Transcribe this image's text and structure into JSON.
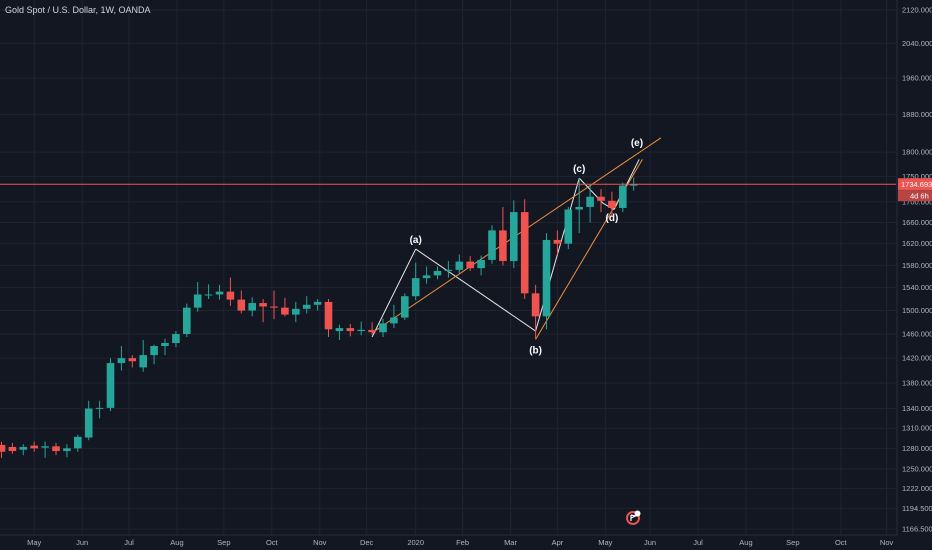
{
  "header": {
    "title": "Gold Spot / U.S. Dollar, 1W, OANDA"
  },
  "colors": {
    "background": "#131722",
    "grid": "#1f2330",
    "up": "#26a69a",
    "down": "#ef5350",
    "pattern_white": "#e8e8e8",
    "pattern_orange": "#f0913a",
    "price_line": "#ef5350"
  },
  "chart_data": {
    "type": "candlestick",
    "title": "Gold Spot / U.S. Dollar, 1W, OANDA",
    "y_axis": {
      "scale": "log",
      "ylim": [
        1166.5,
        2120
      ],
      "tick_labels": [
        "2120.000",
        "2040.000",
        "1960.000",
        "1880.000",
        "1800.000",
        "1750.000",
        "1700.000",
        "1660.000",
        "1620.000",
        "1580.000",
        "1540.000",
        "1500.000",
        "1460.000",
        "1420.000",
        "1380.000",
        "1340.000",
        "1310.000",
        "1280.000",
        "1250.000",
        "1222.000",
        "1194.500",
        "1166.500"
      ],
      "tick_values": [
        2120,
        2040,
        1960,
        1880,
        1800,
        1750,
        1700,
        1660,
        1620,
        1580,
        1540,
        1500,
        1460,
        1420,
        1380,
        1340,
        1310,
        1280,
        1250,
        1222,
        1194.5,
        1166.5
      ]
    },
    "x_axis": {
      "tick_labels": [
        "May",
        "Jun",
        "Jul",
        "Aug",
        "Sep",
        "Oct",
        "Nov",
        "Dec",
        "2020",
        "Feb",
        "Mar",
        "Apr",
        "May",
        "Jun",
        "Jul",
        "Aug",
        "Sep",
        "Oct",
        "Nov"
      ],
      "tick_weeks": [
        3,
        7.4,
        11.7,
        16.1,
        20.4,
        24.8,
        29.2,
        33.5,
        38,
        42.3,
        46.7,
        51,
        55.4,
        59.5,
        63.9,
        68.3,
        72.6,
        77,
        81.2
      ]
    },
    "current_price": {
      "label": "1734.693",
      "value": 1734.693,
      "countdown": "4d 6h"
    },
    "candles": [
      {
        "o": 1285,
        "h": 1290,
        "l": 1266,
        "c": 1275
      },
      {
        "o": 1282,
        "h": 1288,
        "l": 1272,
        "c": 1276
      },
      {
        "o": 1278,
        "h": 1286,
        "l": 1270,
        "c": 1282
      },
      {
        "o": 1284,
        "h": 1290,
        "l": 1275,
        "c": 1280
      },
      {
        "o": 1281,
        "h": 1290,
        "l": 1266,
        "c": 1283
      },
      {
        "o": 1283,
        "h": 1288,
        "l": 1270,
        "c": 1276
      },
      {
        "o": 1276,
        "h": 1286,
        "l": 1267,
        "c": 1280
      },
      {
        "o": 1280,
        "h": 1300,
        "l": 1275,
        "c": 1297
      },
      {
        "o": 1296,
        "h": 1352,
        "l": 1292,
        "c": 1340
      },
      {
        "o": 1340,
        "h": 1352,
        "l": 1325,
        "c": 1341
      },
      {
        "o": 1341,
        "h": 1420,
        "l": 1336,
        "c": 1412
      },
      {
        "o": 1412,
        "h": 1440,
        "l": 1400,
        "c": 1420
      },
      {
        "o": 1420,
        "h": 1425,
        "l": 1405,
        "c": 1415
      },
      {
        "o": 1405,
        "h": 1450,
        "l": 1398,
        "c": 1425
      },
      {
        "o": 1425,
        "h": 1442,
        "l": 1410,
        "c": 1440
      },
      {
        "o": 1440,
        "h": 1452,
        "l": 1425,
        "c": 1445
      },
      {
        "o": 1445,
        "h": 1465,
        "l": 1438,
        "c": 1460
      },
      {
        "o": 1460,
        "h": 1512,
        "l": 1455,
        "c": 1505
      },
      {
        "o": 1505,
        "h": 1550,
        "l": 1498,
        "c": 1528
      },
      {
        "o": 1528,
        "h": 1546,
        "l": 1520,
        "c": 1528
      },
      {
        "o": 1528,
        "h": 1545,
        "l": 1519,
        "c": 1533
      },
      {
        "o": 1533,
        "h": 1558,
        "l": 1508,
        "c": 1519
      },
      {
        "o": 1519,
        "h": 1535,
        "l": 1495,
        "c": 1500
      },
      {
        "o": 1500,
        "h": 1523,
        "l": 1490,
        "c": 1513
      },
      {
        "o": 1513,
        "h": 1520,
        "l": 1480,
        "c": 1507
      },
      {
        "o": 1507,
        "h": 1535,
        "l": 1485,
        "c": 1505
      },
      {
        "o": 1505,
        "h": 1522,
        "l": 1490,
        "c": 1493
      },
      {
        "o": 1493,
        "h": 1515,
        "l": 1480,
        "c": 1503
      },
      {
        "o": 1503,
        "h": 1525,
        "l": 1495,
        "c": 1510
      },
      {
        "o": 1510,
        "h": 1520,
        "l": 1500,
        "c": 1515
      },
      {
        "o": 1515,
        "h": 1520,
        "l": 1455,
        "c": 1468
      },
      {
        "o": 1465,
        "h": 1476,
        "l": 1450,
        "c": 1470
      },
      {
        "o": 1470,
        "h": 1477,
        "l": 1456,
        "c": 1465
      },
      {
        "o": 1465,
        "h": 1481,
        "l": 1458,
        "c": 1467
      },
      {
        "o": 1467,
        "h": 1480,
        "l": 1459,
        "c": 1463
      },
      {
        "o": 1463,
        "h": 1486,
        "l": 1455,
        "c": 1478
      },
      {
        "o": 1478,
        "h": 1510,
        "l": 1470,
        "c": 1488
      },
      {
        "o": 1488,
        "h": 1530,
        "l": 1484,
        "c": 1525
      },
      {
        "o": 1525,
        "h": 1585,
        "l": 1518,
        "c": 1557
      },
      {
        "o": 1557,
        "h": 1578,
        "l": 1547,
        "c": 1562
      },
      {
        "o": 1562,
        "h": 1578,
        "l": 1555,
        "c": 1570
      },
      {
        "o": 1570,
        "h": 1588,
        "l": 1558,
        "c": 1572
      },
      {
        "o": 1572,
        "h": 1600,
        "l": 1566,
        "c": 1587
      },
      {
        "o": 1587,
        "h": 1597,
        "l": 1570,
        "c": 1575
      },
      {
        "o": 1575,
        "h": 1598,
        "l": 1562,
        "c": 1590
      },
      {
        "o": 1590,
        "h": 1655,
        "l": 1583,
        "c": 1645
      },
      {
        "o": 1645,
        "h": 1690,
        "l": 1580,
        "c": 1588
      },
      {
        "o": 1588,
        "h": 1703,
        "l": 1575,
        "c": 1680
      },
      {
        "o": 1680,
        "h": 1705,
        "l": 1520,
        "c": 1530
      },
      {
        "o": 1530,
        "h": 1545,
        "l": 1451,
        "c": 1490
      },
      {
        "o": 1490,
        "h": 1640,
        "l": 1468,
        "c": 1627
      },
      {
        "o": 1627,
        "h": 1645,
        "l": 1600,
        "c": 1620
      },
      {
        "o": 1620,
        "h": 1690,
        "l": 1610,
        "c": 1685
      },
      {
        "o": 1685,
        "h": 1747,
        "l": 1640,
        "c": 1690
      },
      {
        "o": 1690,
        "h": 1735,
        "l": 1660,
        "c": 1710
      },
      {
        "o": 1710,
        "h": 1725,
        "l": 1680,
        "c": 1702
      },
      {
        "o": 1702,
        "h": 1720,
        "l": 1671,
        "c": 1688
      },
      {
        "o": 1688,
        "h": 1738,
        "l": 1680,
        "c": 1732
      },
      {
        "o": 1732,
        "h": 1748,
        "l": 1722,
        "c": 1735
      }
    ],
    "wave_points": [
      {
        "label": "(a)",
        "week": 38,
        "price": 1610
      },
      {
        "label": "(b)",
        "week": 49,
        "price": 1451
      },
      {
        "label": "(c)",
        "week": 53,
        "price": 1747
      },
      {
        "label": "(d)",
        "week": 56,
        "price": 1690
      },
      {
        "label": "(e)",
        "week": 58.3,
        "price": 1800
      }
    ],
    "trendlines": {
      "upper_channel": [
        {
          "week": 34,
          "price": 1462
        },
        {
          "week": 60.5,
          "price": 1830
        }
      ],
      "lower_channel": [
        {
          "week": 49,
          "price": 1451
        },
        {
          "week": 58.8,
          "price": 1785
        }
      ],
      "zigzag": [
        {
          "week": 34,
          "price": 1455
        },
        {
          "week": 38,
          "price": 1610
        },
        {
          "week": 49,
          "price": 1465
        },
        {
          "week": 53,
          "price": 1747
        },
        {
          "week": 55.2,
          "price": 1697
        },
        {
          "week": 56.2,
          "price": 1685
        },
        {
          "week": 58.5,
          "price": 1785
        }
      ]
    }
  },
  "badge": {
    "icon": "flag-icon"
  }
}
